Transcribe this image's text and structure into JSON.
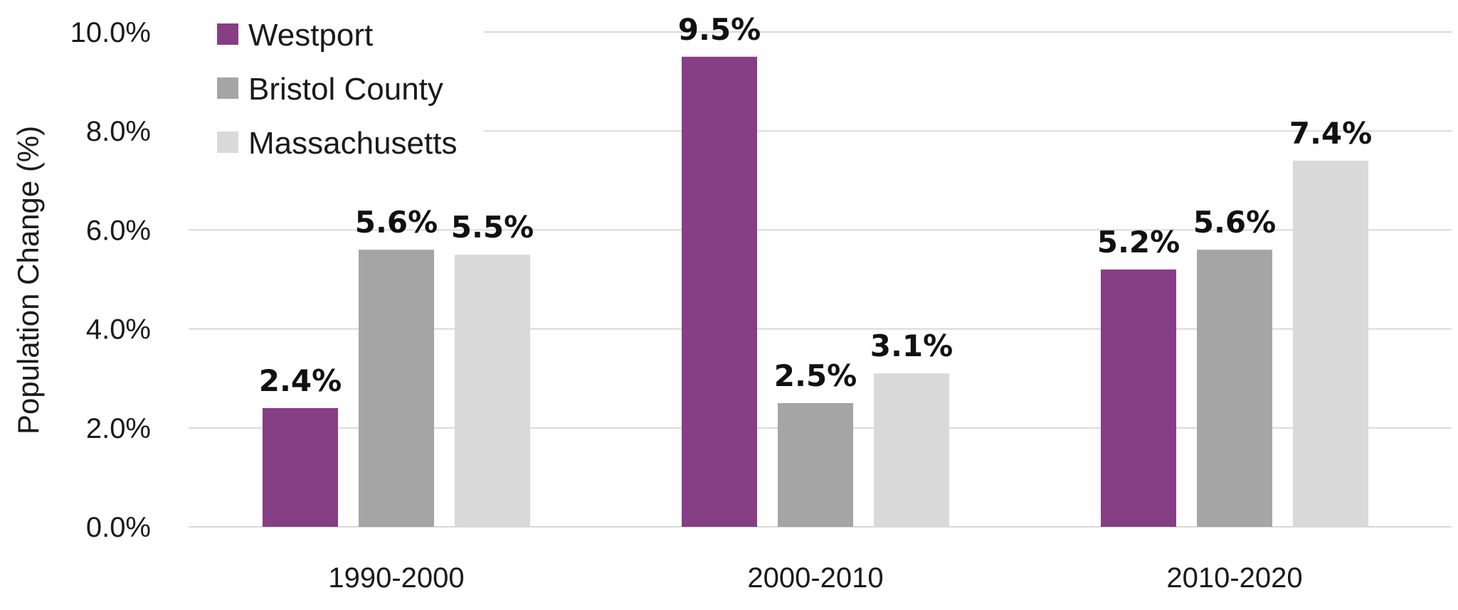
{
  "chart_data": {
    "type": "bar",
    "title": "",
    "xlabel": "",
    "ylabel": "Population Change (%)",
    "ylim": [
      0,
      10
    ],
    "yticks": [
      "0.0%",
      "2.0%",
      "4.0%",
      "6.0%",
      "8.0%",
      "10.0%"
    ],
    "grid": true,
    "legend_position": "top-left",
    "categories": [
      "1990-2000",
      "2000-2010",
      "2010-2020"
    ],
    "series": [
      {
        "name": "Westport",
        "color": "#863e85",
        "values": [
          2.4,
          9.5,
          5.2
        ],
        "labels": [
          "2.4%",
          "9.5%",
          "5.2%"
        ]
      },
      {
        "name": "Bristol County",
        "color": "#a5a5a5",
        "values": [
          5.6,
          2.5,
          5.6
        ],
        "labels": [
          "5.6%",
          "2.5%",
          "5.6%"
        ]
      },
      {
        "name": "Massachusetts",
        "color": "#d9d9d9",
        "values": [
          5.5,
          3.1,
          7.4
        ],
        "labels": [
          "5.5%",
          "3.1%",
          "7.4%"
        ]
      }
    ]
  }
}
